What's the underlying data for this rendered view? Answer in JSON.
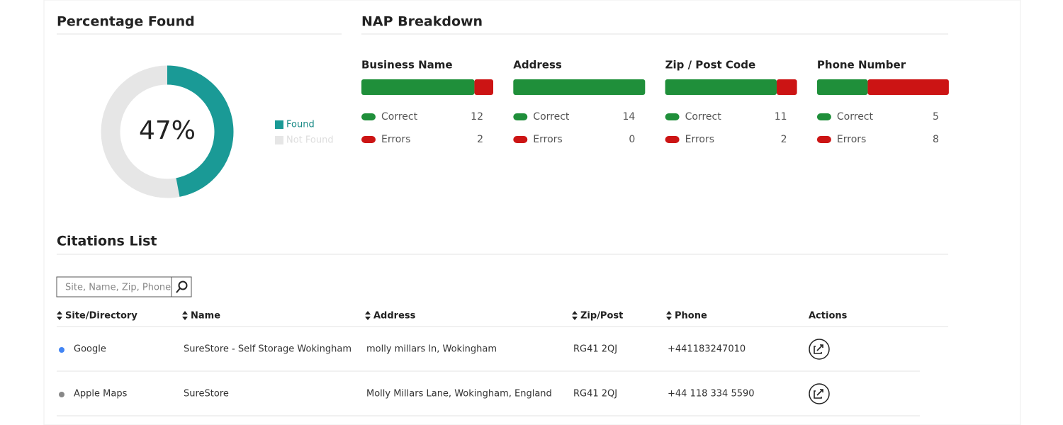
{
  "percentage_found": {
    "title": "Percentage Found",
    "value": 47,
    "value_label": "47%",
    "legend": [
      {
        "label": "Found",
        "color": "#1a9a96"
      },
      {
        "label": "Not Found",
        "color": "#e6e6e6"
      }
    ]
  },
  "nap_breakdown": {
    "title": "NAP Breakdown",
    "correct_label": "Correct",
    "errors_label": "Errors",
    "correct_color": "#1f8f3a",
    "errors_color": "#cc1414",
    "items": [
      {
        "label": "Business Name",
        "correct": 12,
        "errors": 2
      },
      {
        "label": "Address",
        "correct": 14,
        "errors": 0
      },
      {
        "label": "Zip / Post Code",
        "correct": 11,
        "errors": 2
      },
      {
        "label": "Phone Number",
        "correct": 5,
        "errors": 8
      }
    ]
  },
  "citations": {
    "title": "Citations List",
    "search_placeholder": "Site, Name, Zip, Phone",
    "columns": [
      "Site/Directory",
      "Name",
      "Address",
      "Zip/Post",
      "Phone",
      "Actions"
    ],
    "rows": [
      {
        "site": "Google",
        "name": "SureStore - Self Storage Wokingham",
        "address": "molly millars ln, Wokingham",
        "zip": "RG41 2QJ",
        "phone": "+441183247010",
        "name_color": "#2a5a8a",
        "phone_color": "#333333"
      },
      {
        "site": "Apple Maps",
        "name": "SureStore",
        "address": "Molly Millars Lane, Wokingham, England",
        "zip": "RG41 2QJ",
        "phone": "+44 118 334 5590",
        "name_color": "#b02020",
        "phone_color": "#b02020"
      }
    ]
  }
}
